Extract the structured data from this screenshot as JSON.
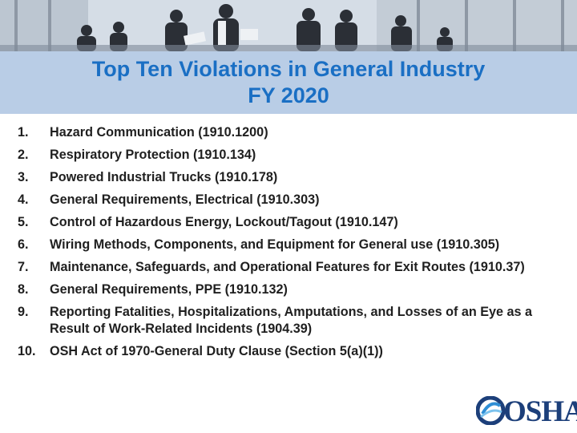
{
  "header": {
    "title_line1": "Top Ten Violations in General Industry",
    "title_line2": "FY 2020",
    "photo": "office-meeting-photo"
  },
  "violations": [
    {
      "num": "1.",
      "text": "Hazard Communication (1910.1200)"
    },
    {
      "num": "2.",
      "text": "Respiratory Protection (1910.134)"
    },
    {
      "num": "3.",
      "text": "Powered Industrial Trucks (1910.178)"
    },
    {
      "num": "4.",
      "text": "General Requirements, Electrical (1910.303)"
    },
    {
      "num": "5.",
      "text": "Control of Hazardous Energy, Lockout/Tagout (1910.147)"
    },
    {
      "num": "6.",
      "text": "Wiring Methods, Components, and Equipment for General use (1910.305)"
    },
    {
      "num": "7.",
      "text": "Maintenance, Safeguards, and Operational Features for Exit Routes (1910.37)"
    },
    {
      "num": "8.",
      "text": "General Requirements, PPE (1910.132)"
    },
    {
      "num": "9.",
      "text": "Reporting Fatalities, Hospitalizations, Amputations, and Losses of an Eye as a Result of Work-Related Incidents (1904.39)"
    },
    {
      "num": "10.",
      "text": "OSH Act of 1970-General Duty Clause (Section 5(a)(1))"
    }
  ],
  "logo": {
    "text": "OSHA",
    "icon": "osha-logo-icon"
  },
  "colors": {
    "title": "#1a6fc4",
    "title_band": "#b9cde6",
    "logo": "#1c3f7a"
  }
}
